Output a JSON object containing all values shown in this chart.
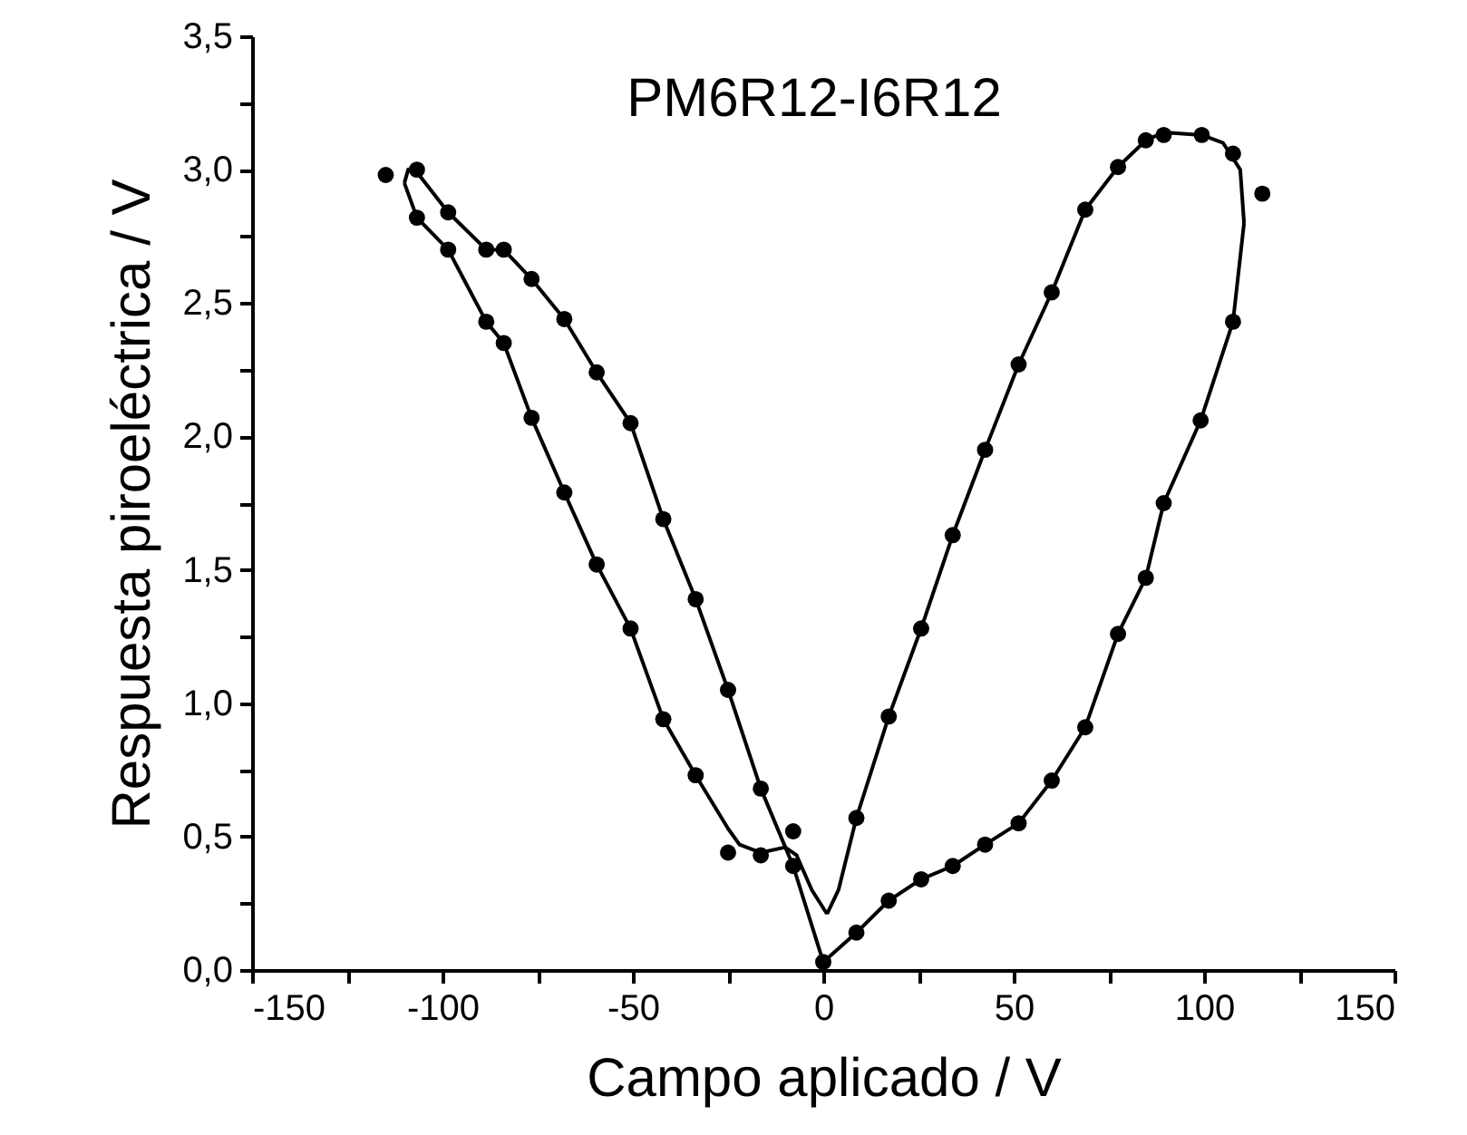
{
  "chart_data": {
    "type": "scatter",
    "title": "PM6R12-I6R12",
    "xlabel": "Campo aplicado / V",
    "ylabel": "Respuesta piroeléctrica / V",
    "xlim": [
      -150,
      150
    ],
    "xticks": [
      -150,
      {
        "value": -125,
        "label": null
      },
      -100,
      {
        "value": -75,
        "label": null
      },
      -50,
      {
        "value": -25,
        "label": null
      },
      0,
      {
        "value": 25,
        "label": null
      },
      50,
      {
        "value": 75,
        "label": null
      },
      100,
      {
        "value": 125,
        "label": null
      },
      150
    ],
    "ylim": [
      0,
      3.5
    ],
    "yticks": [
      {
        "value": 0,
        "label": "0,0"
      },
      {
        "value": 0.25,
        "label": null
      },
      {
        "value": 0.5,
        "label": "0,5"
      },
      {
        "value": 0.75,
        "label": null
      },
      {
        "value": 1,
        "label": "1,0"
      },
      {
        "value": 1.25,
        "label": null
      },
      {
        "value": 1.5,
        "label": "1,5"
      },
      {
        "value": 1.75,
        "label": null
      },
      {
        "value": 2,
        "label": "2,0"
      },
      {
        "value": 2.25,
        "label": null
      },
      {
        "value": 2.5,
        "label": "2,5"
      },
      {
        "value": 2.75,
        "label": null
      },
      {
        "value": 3,
        "label": "3,0"
      },
      {
        "value": 3.25,
        "label": null
      },
      {
        "value": 3.5,
        "label": "3,5"
      }
    ],
    "grid": false,
    "marker": "circle",
    "line_style": "solid",
    "series": [
      {
        "type": "line",
        "marker": "none",
        "color": "#000000",
        "x": [
          0,
          8.7,
          17.2,
          25.7,
          34,
          42.5,
          51.3,
          60,
          68.8,
          77.4,
          84.7,
          89.4,
          99.1,
          107.6,
          110.5
        ],
        "values": [
          0.03,
          0.14,
          0.26,
          0.34,
          0.39,
          0.47,
          0.55,
          0.71,
          0.91,
          1.26,
          1.47,
          1.75,
          2.06,
          2.43,
          2.8
        ]
      },
      {
        "type": "line",
        "marker": "none",
        "color": "#000000",
        "x": [
          110.5,
          109.5,
          105,
          99.4,
          89.4,
          84.7,
          77.4,
          68.8,
          60,
          51.3,
          42.5,
          34,
          25.7,
          17.2,
          8.7,
          4,
          1
        ],
        "values": [
          2.8,
          3.0,
          3.1,
          3.13,
          3.14,
          3.11,
          3.01,
          2.85,
          2.54,
          2.27,
          1.95,
          1.63,
          1.28,
          0.95,
          0.57,
          0.3,
          0.21
        ]
      },
      {
        "type": "line",
        "marker": "none",
        "color": "#000000",
        "x": [
          1,
          -3,
          -7,
          -10,
          -16.4,
          -22,
          -25,
          -33.5,
          -42,
          -50.6,
          -59.5,
          -68,
          -76.6,
          -83.9,
          -88.5,
          -98.5,
          -106.7,
          -110
        ],
        "values": [
          0.21,
          0.3,
          0.43,
          0.46,
          0.44,
          0.47,
          0.53,
          0.73,
          0.94,
          1.28,
          1.52,
          1.79,
          2.07,
          2.35,
          2.43,
          2.7,
          2.82,
          2.95
        ]
      },
      {
        "type": "line",
        "marker": "none",
        "color": "#000000",
        "x": [
          -110,
          -109,
          -106.7,
          -98.5,
          -88.5,
          -83.9,
          -76.6,
          -68,
          -59.5,
          -50.6,
          -42,
          -33.5,
          -25,
          -16.4,
          -7.9,
          0
        ],
        "values": [
          2.95,
          3.0,
          2.99,
          2.84,
          2.7,
          2.7,
          2.59,
          2.44,
          2.24,
          2.05,
          1.69,
          1.39,
          1.05,
          0.68,
          0.39,
          0.03
        ]
      },
      {
        "color": "#000000",
        "x": [
          0,
          8.7,
          17.2,
          25.7,
          34,
          42.5,
          51.3,
          60,
          68.8,
          77.4,
          84.7,
          89.4,
          99.1,
          107.6,
          115.3,
          107.6,
          99.4,
          89.4,
          84.7,
          77.4,
          68.8,
          60,
          51.3,
          42.5,
          34,
          25.7,
          17.2,
          8.7,
          -7.9,
          -16.4,
          -25,
          -33.5,
          -42,
          -50.6,
          -59.5,
          -68,
          -76.6,
          -83.9,
          -88.5,
          -98.5,
          -106.7,
          -114.9,
          -106.7,
          -98.5,
          -88.5,
          -83.9,
          -76.6,
          -68,
          -59.5,
          -50.6,
          -42,
          -33.5,
          -25,
          -16.4,
          -7.9
        ],
        "values": [
          0.03,
          0.14,
          0.26,
          0.34,
          0.39,
          0.47,
          0.55,
          0.71,
          0.91,
          1.26,
          1.47,
          1.75,
          2.06,
          2.43,
          2.91,
          3.06,
          3.13,
          3.13,
          3.11,
          3.01,
          2.85,
          2.54,
          2.27,
          1.95,
          1.63,
          1.28,
          0.95,
          0.57,
          0.52,
          0.43,
          0.44,
          0.73,
          0.94,
          1.28,
          1.52,
          1.79,
          2.07,
          2.35,
          2.43,
          2.7,
          2.82,
          2.98,
          3.0,
          2.84,
          2.7,
          2.7,
          2.59,
          2.44,
          2.24,
          2.05,
          1.69,
          1.39,
          1.05,
          0.68,
          0.39
        ]
      }
    ]
  }
}
